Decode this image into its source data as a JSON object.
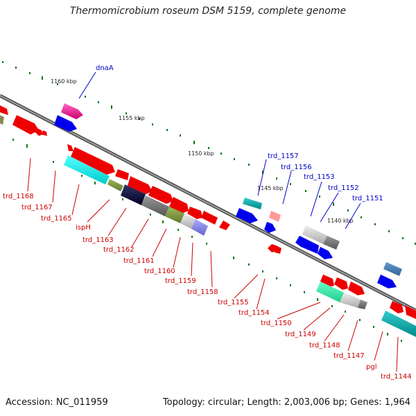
{
  "title": "Thermomicrobium roseum DSM 5159, complete genome",
  "footer": {
    "accession": "Accession: NC_011959",
    "summary": "Topology: circular; Length: 2,003,006 bp; Genes: 1,964"
  },
  "ruler_labels": [
    "1160 kbp",
    "1155 kbp",
    "1150 kbp",
    "1145 kbp",
    "1140 kbp"
  ],
  "colors": {
    "backbone": "#7a7a7a",
    "forward_gene": "#0000ff",
    "reverse_gene": "#ff0000",
    "tick": "#117711",
    "forward_label": "#0000cc",
    "reverse_label": "#cc0000"
  },
  "forward_labels": [
    "dnaA",
    "trd_1157",
    "trd_1156",
    "trd_1153",
    "trd_1152",
    "trd_1151"
  ],
  "reverse_labels": [
    "trd_1168",
    "trd_1167",
    "trd_1165",
    "ispH",
    "trd_1163",
    "trd_1162",
    "trd_1161",
    "trd_1160",
    "trd_1159",
    "trd_1158",
    "trd_1155",
    "trd_1154",
    "trd_1150",
    "trd_1149",
    "trd_1148",
    "trd_1147",
    "pgl",
    "trd_1144"
  ]
}
